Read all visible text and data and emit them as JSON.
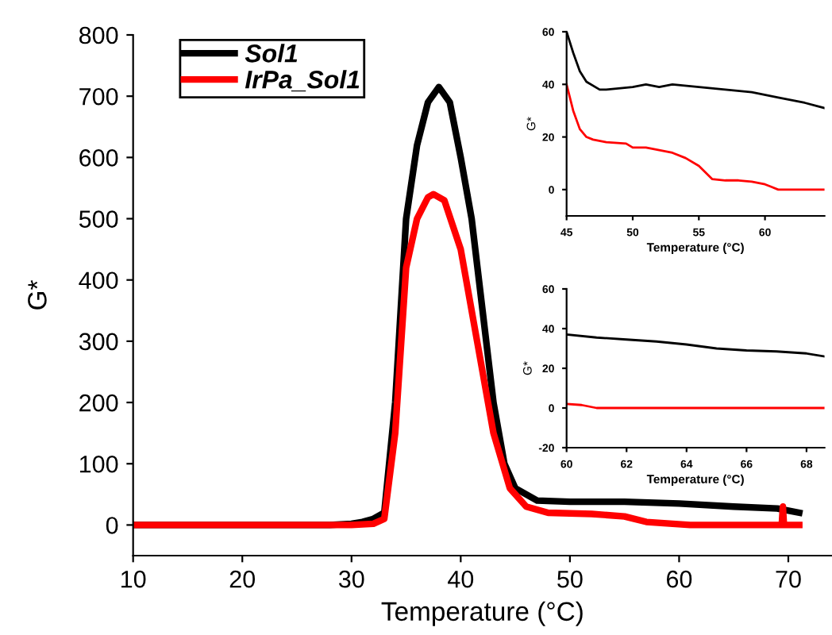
{
  "chart_data": [
    {
      "type": "line",
      "xlabel": "Temperature (°C)",
      "ylabel": "G*",
      "xlim": [
        10,
        74
      ],
      "ylim": [
        -50,
        800
      ],
      "xticks": [
        10,
        20,
        30,
        40,
        50,
        60,
        70
      ],
      "yticks": [
        0,
        100,
        200,
        300,
        400,
        500,
        600,
        700,
        800
      ],
      "legend": "top left",
      "grid": false,
      "marker": "none",
      "line_style": "solid",
      "series": [
        {
          "name": "Sol1",
          "color": "#000000",
          "x": [
            10,
            20,
            28,
            30,
            31,
            32,
            33,
            34,
            35,
            36,
            37,
            38,
            39,
            40,
            41,
            42,
            43,
            44,
            45,
            47,
            50,
            55,
            60,
            65,
            69,
            71
          ],
          "values": [
            0,
            0,
            0,
            2,
            5,
            10,
            20,
            200,
            500,
            620,
            690,
            715,
            690,
            600,
            500,
            350,
            200,
            100,
            60,
            40,
            38,
            38,
            35,
            30,
            27,
            20
          ]
        },
        {
          "name": "IrPa_Sol1",
          "color": "#ff0000",
          "x": [
            10,
            20,
            30,
            32,
            33,
            34,
            35,
            36,
            37,
            37.5,
            38.5,
            40,
            41.5,
            43,
            44.5,
            46,
            48,
            52,
            55,
            57,
            61,
            69.4,
            69.5,
            69.6,
            71
          ],
          "values": [
            0,
            0,
            0,
            2,
            10,
            150,
            420,
            500,
            535,
            540,
            530,
            450,
            300,
            150,
            60,
            30,
            20,
            18,
            14,
            5,
            0,
            0,
            30,
            0,
            0
          ]
        }
      ]
    },
    {
      "type": "line",
      "xlabel": "Temperature (°C)",
      "ylabel": "G*",
      "xlim": [
        45,
        64.5
      ],
      "ylim": [
        -10,
        60
      ],
      "xticks": [
        45,
        50,
        55,
        60
      ],
      "yticks": [
        0,
        20,
        40,
        60
      ],
      "grid": false,
      "marker": "none",
      "line_style": "solid",
      "series": [
        {
          "color": "#000000",
          "x": [
            45,
            45.5,
            46,
            46.5,
            47.5,
            48,
            50,
            51,
            52,
            53,
            55,
            57,
            59,
            61,
            63,
            64.5
          ],
          "values": [
            60,
            52,
            45,
            41,
            38,
            38,
            39,
            40,
            39,
            40,
            39,
            38,
            37,
            35,
            33,
            31
          ]
        },
        {
          "color": "#ff0000",
          "x": [
            45,
            45.5,
            46,
            46.5,
            47,
            48,
            49.5,
            50,
            51,
            52,
            53,
            54,
            55,
            56,
            57,
            58,
            59,
            60,
            60.5,
            61,
            64.5
          ],
          "values": [
            40,
            30,
            23,
            20,
            19,
            18,
            17.5,
            16,
            16,
            15,
            14,
            12,
            9,
            4,
            3.5,
            3.5,
            3,
            2,
            1,
            0,
            0
          ]
        }
      ]
    },
    {
      "type": "line",
      "xlabel": "Temperature (°C)",
      "ylabel": "G*",
      "xlim": [
        60,
        68.6
      ],
      "ylim": [
        -20,
        60
      ],
      "xticks": [
        60,
        62,
        64,
        66,
        68
      ],
      "yticks": [
        -20,
        0,
        20,
        40,
        60
      ],
      "grid": false,
      "marker": "none",
      "line_style": "solid",
      "series": [
        {
          "color": "#000000",
          "x": [
            60,
            61,
            62,
            63,
            64,
            65,
            66,
            67,
            68,
            68.6
          ],
          "values": [
            37,
            35.5,
            34.5,
            33.5,
            32,
            30,
            29,
            28.5,
            27.5,
            26
          ]
        },
        {
          "color": "#ff0000",
          "x": [
            60,
            60.5,
            61,
            68.6
          ],
          "values": [
            2,
            1.5,
            0,
            0
          ]
        }
      ]
    }
  ]
}
